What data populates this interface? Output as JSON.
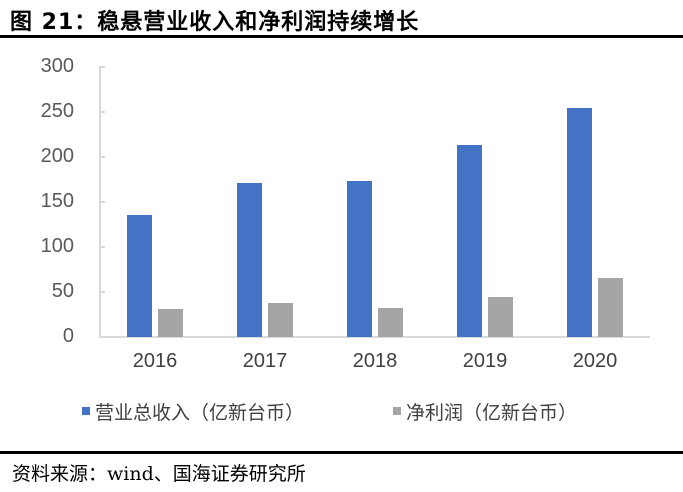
{
  "figure": {
    "title": "图 21：稳悬营业收入和净利润持续增长",
    "source": "资料来源：wind、国海证券研究所"
  },
  "colors": {
    "revenue": "#4472c4",
    "net_profit": "#a5a5a5",
    "axis": "#d9d9d9"
  },
  "chart_data": {
    "type": "bar",
    "title": "稳悬营业收入和净利润持续增长",
    "categories": [
      "2016",
      "2017",
      "2018",
      "2019",
      "2020"
    ],
    "series": [
      {
        "name": "营业总收入（亿新台币）",
        "values": [
          136,
          171,
          173,
          213,
          255
        ]
      },
      {
        "name": "净利润（亿新台币）",
        "values": [
          31,
          38,
          32,
          45,
          66
        ]
      }
    ],
    "xlabel": "",
    "ylabel": "",
    "ylim": [
      0,
      300
    ],
    "yticks": [
      "0",
      "50",
      "100",
      "150",
      "200",
      "250",
      "300"
    ],
    "grid": false,
    "legend_position": "bottom"
  }
}
